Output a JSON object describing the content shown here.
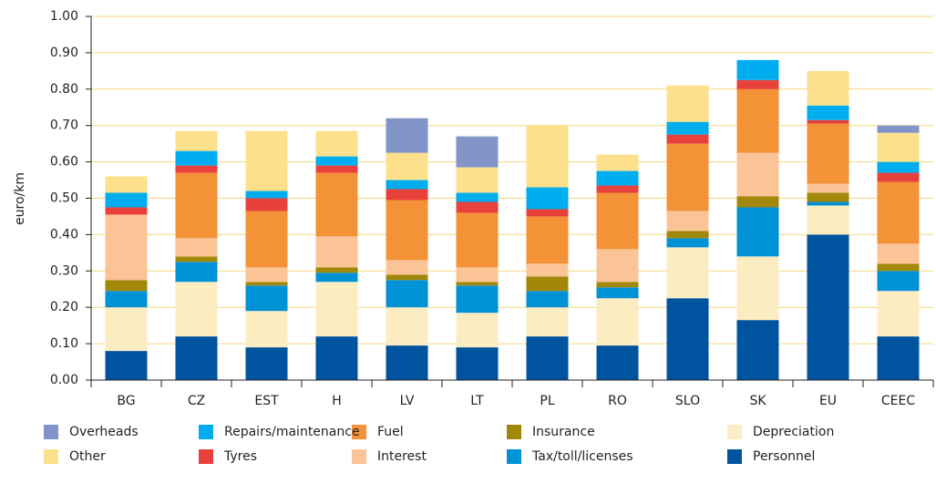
{
  "chart_data": {
    "type": "stacked_bar",
    "y_axis_label": "euro/km",
    "categories": [
      "BG",
      "CZ",
      "EST",
      "H",
      "LV",
      "LT",
      "PL",
      "RO",
      "SLO",
      "SK",
      "EU",
      "CEEC"
    ],
    "series": [
      {
        "name": "Personnel",
        "color": "#00539f",
        "values": [
          0.08,
          0.12,
          0.09,
          0.12,
          0.095,
          0.09,
          0.12,
          0.095,
          0.225,
          0.165,
          0.4,
          0.12
        ]
      },
      {
        "name": "Depreciation",
        "color": "#fcecc2",
        "values": [
          0.12,
          0.15,
          0.1,
          0.15,
          0.105,
          0.095,
          0.08,
          0.13,
          0.14,
          0.175,
          0.08,
          0.125
        ]
      },
      {
        "name": "Tax/toll/licenses",
        "color": "#0092d6",
        "values": [
          0.045,
          0.055,
          0.07,
          0.025,
          0.075,
          0.075,
          0.045,
          0.03,
          0.025,
          0.135,
          0.01,
          0.055
        ]
      },
      {
        "name": "Insurance",
        "color": "#a2880a",
        "values": [
          0.03,
          0.015,
          0.01,
          0.015,
          0.015,
          0.01,
          0.04,
          0.015,
          0.02,
          0.03,
          0.025,
          0.02
        ]
      },
      {
        "name": "Interest",
        "color": "#fbc497",
        "values": [
          0.18,
          0.05,
          0.04,
          0.085,
          0.04,
          0.04,
          0.035,
          0.09,
          0.055,
          0.12,
          0.025,
          0.055
        ]
      },
      {
        "name": "Fuel",
        "color": "#f39237",
        "values": [
          0,
          0.18,
          0.155,
          0.175,
          0.165,
          0.15,
          0.13,
          0.155,
          0.185,
          0.175,
          0.165,
          0.17
        ]
      },
      {
        "name": "Tyres",
        "color": "#e8413c",
        "values": [
          0.02,
          0.02,
          0.035,
          0.02,
          0.03,
          0.03,
          0.02,
          0.02,
          0.025,
          0.025,
          0.01,
          0.025
        ]
      },
      {
        "name": "Repairs/maintenance",
        "color": "#00aeef",
        "values": [
          0.04,
          0.04,
          0.02,
          0.025,
          0.025,
          0.025,
          0.06,
          0.04,
          0.035,
          0.055,
          0.04,
          0.03
        ]
      },
      {
        "name": "Other",
        "color": "#fde08c",
        "values": [
          0.045,
          0.055,
          0.165,
          0.07,
          0.075,
          0.07,
          0.17,
          0.045,
          0.1,
          0,
          0.095,
          0.08
        ]
      },
      {
        "name": "Overheads",
        "color": "#8295c9",
        "values": [
          0,
          0,
          0,
          0,
          0.095,
          0.085,
          0,
          0,
          0,
          0,
          0,
          0.02
        ]
      }
    ],
    "ylim": [
      0,
      1
    ],
    "yticks": [
      {
        "value": 0,
        "label": "0.00"
      },
      {
        "value": 0.1,
        "label": "0.10"
      },
      {
        "value": 0.2,
        "label": "0.20"
      },
      {
        "value": 0.3,
        "label": "0.30"
      },
      {
        "value": 0.4,
        "label": "0.40"
      },
      {
        "value": 0.5,
        "label": "0.50"
      },
      {
        "value": 0.6,
        "label": "0.60"
      },
      {
        "value": 0.7,
        "label": "0.70"
      },
      {
        "value": 0.8,
        "label": "0.80"
      },
      {
        "value": 0.9,
        "label": "0.90"
      },
      {
        "value": 1,
        "label": "1.00"
      }
    ],
    "grid": true,
    "legend": "bottom"
  }
}
